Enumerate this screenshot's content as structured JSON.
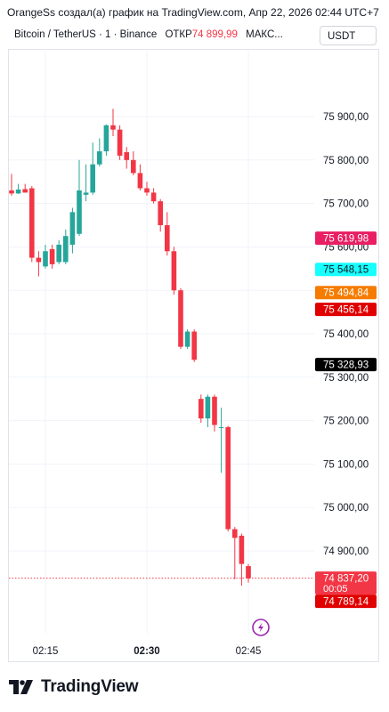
{
  "header": {
    "attribution": "OrangeSs создал(а) график на TradingView.com, Апр 22, 2026 02:44 UTC+7",
    "symbol_line": "Bitcoin / TetherUS · 1 · Binance",
    "open_label": "ОТКР",
    "open_value": "74 899,99",
    "max_label": "МАКС...",
    "currency_button": "USDT"
  },
  "footer": {
    "brand": "TradingView"
  },
  "colors": {
    "up": "#26a69a",
    "down": "#f23645",
    "grid": "#f0f3fa",
    "text": "#131722"
  },
  "chart_data": {
    "type": "candlestick",
    "interval": "1 minute",
    "y_axis": {
      "ticks": [
        74900,
        75000,
        75100,
        75200,
        75300,
        75400,
        75500,
        75600,
        75700,
        75800,
        75900
      ],
      "tick_labels": [
        "74 900,00",
        "75 000,00",
        "75 100,00",
        "75 200,00",
        "75 300,00",
        "75 400,00",
        "75 500,00",
        "75 600,00",
        "75 700,00",
        "75 800,00",
        "75 900,00"
      ],
      "range": [
        74740,
        76000
      ]
    },
    "x_axis": {
      "labels": [
        {
          "time": "02:15",
          "bold": false
        },
        {
          "time": "02:30",
          "bold": true
        },
        {
          "time": "02:45",
          "bold": false
        }
      ],
      "label_index": [
        5,
        20,
        35
      ]
    },
    "candles": [
      {
        "o": 75730,
        "h": 75768,
        "l": 75718,
        "c": 75723
      },
      {
        "o": 75723,
        "h": 75745,
        "l": 75722,
        "c": 75732
      },
      {
        "o": 75733,
        "h": 75745,
        "l": 75725,
        "c": 75725
      },
      {
        "o": 75735,
        "h": 75740,
        "l": 75565,
        "c": 75575
      },
      {
        "o": 75575,
        "h": 75590,
        "l": 75532,
        "c": 75565
      },
      {
        "o": 75555,
        "h": 75605,
        "l": 75550,
        "c": 75590
      },
      {
        "o": 75595,
        "h": 75605,
        "l": 75550,
        "c": 75560
      },
      {
        "o": 75565,
        "h": 75615,
        "l": 75560,
        "c": 75605
      },
      {
        "o": 75565,
        "h": 75640,
        "l": 75560,
        "c": 75625
      },
      {
        "o": 75605,
        "h": 75690,
        "l": 75585,
        "c": 75680
      },
      {
        "o": 75630,
        "h": 75800,
        "l": 75625,
        "c": 75730
      },
      {
        "o": 75720,
        "h": 75790,
        "l": 75705,
        "c": 75725
      },
      {
        "o": 75725,
        "h": 75840,
        "l": 75720,
        "c": 75790
      },
      {
        "o": 75790,
        "h": 75850,
        "l": 75785,
        "c": 75820
      },
      {
        "o": 75820,
        "h": 75882,
        "l": 75810,
        "c": 75880
      },
      {
        "o": 75880,
        "h": 75918,
        "l": 75855,
        "c": 75870
      },
      {
        "o": 75870,
        "h": 75880,
        "l": 75800,
        "c": 75810
      },
      {
        "o": 75818,
        "h": 75830,
        "l": 75780,
        "c": 75800
      },
      {
        "o": 75800,
        "h": 75820,
        "l": 75765,
        "c": 75770
      },
      {
        "o": 75770,
        "h": 75790,
        "l": 75730,
        "c": 75735
      },
      {
        "o": 75735,
        "h": 75750,
        "l": 75718,
        "c": 75725
      },
      {
        "o": 75725,
        "h": 75735,
        "l": 75700,
        "c": 75705
      },
      {
        "o": 75705,
        "h": 75710,
        "l": 75635,
        "c": 75650
      },
      {
        "o": 75650,
        "h": 75680,
        "l": 75580,
        "c": 75590
      },
      {
        "o": 75590,
        "h": 75600,
        "l": 75490,
        "c": 75500
      },
      {
        "o": 75500,
        "h": 75505,
        "l": 75365,
        "c": 75370
      },
      {
        "o": 75370,
        "h": 75410,
        "l": 75365,
        "c": 75405
      },
      {
        "o": 75405,
        "h": 75410,
        "l": 75335,
        "c": 75340
      },
      {
        "o": 75250,
        "h": 75260,
        "l": 75195,
        "c": 75205
      },
      {
        "o": 75205,
        "h": 75260,
        "l": 75185,
        "c": 75255
      },
      {
        "o": 75255,
        "h": 75260,
        "l": 75175,
        "c": 75190
      },
      {
        "o": 75185,
        "h": 75230,
        "l": 75080,
        "c": 75185
      },
      {
        "o": 75185,
        "h": 75188,
        "l": 74945,
        "c": 74950
      },
      {
        "o": 74950,
        "h": 74955,
        "l": 74835,
        "c": 74930
      },
      {
        "o": 74935,
        "h": 74940,
        "l": 74820,
        "c": 74870
      },
      {
        "o": 74865,
        "h": 74870,
        "l": 74827,
        "c": 74837
      }
    ],
    "price_labels": [
      {
        "text": "75 619,98",
        "value": 75619.98,
        "bg": "#e91e63",
        "fg": "#ffffff"
      },
      {
        "text": "75 548,15",
        "value": 75548.15,
        "bg": "#18ffff",
        "fg": "#131722"
      },
      {
        "text": "75 494,84",
        "value": 75494.84,
        "bg": "#f57c00",
        "fg": "#ffffff"
      },
      {
        "text": "75 456,14",
        "value": 75456.14,
        "bg": "#e00000",
        "fg": "#ffffff"
      },
      {
        "text": "75 328,93",
        "value": 75328.93,
        "bg": "#000000",
        "fg": "#ffffff"
      },
      {
        "text": "74 837,20",
        "value": 74837.2,
        "bg": "#f23645",
        "fg": "#ffffff",
        "sub": "00:05"
      },
      {
        "text": "74 789,14",
        "value": 74789.14,
        "bg": "#e00000",
        "fg": "#ffffff"
      }
    ],
    "current_price": 74837.2
  }
}
